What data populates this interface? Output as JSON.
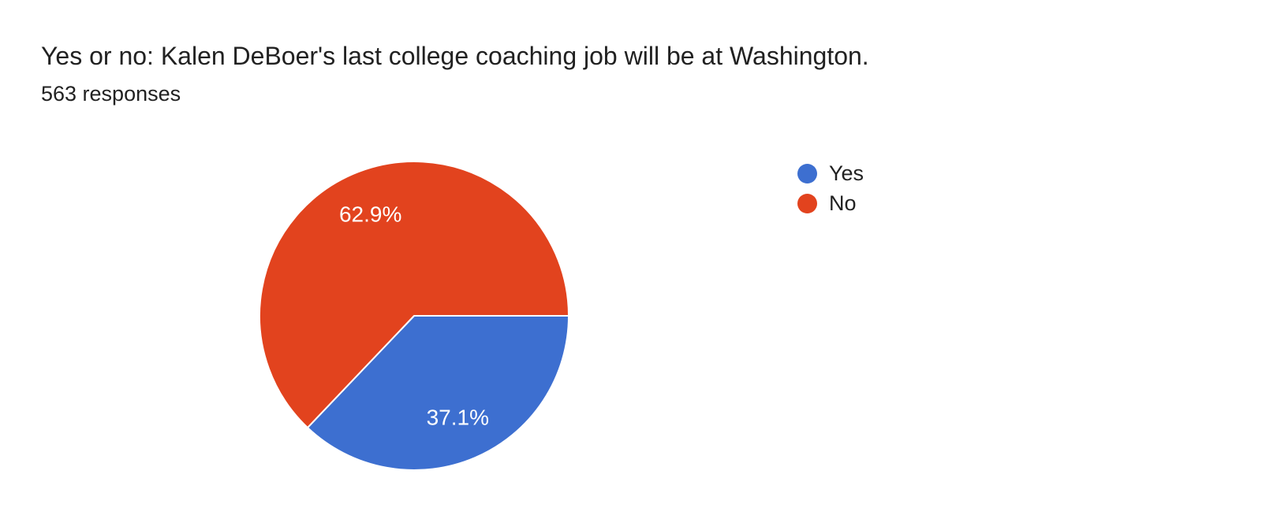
{
  "header": {
    "title": "Yes or no: Kalen DeBoer's last college coaching job will be at Washington.",
    "response_count": "563 responses"
  },
  "chart_data": {
    "type": "pie",
    "title": "Yes or no: Kalen DeBoer's last college coaching job will be at Washington.",
    "subtitle": "563 responses",
    "slices": [
      {
        "label": "Yes",
        "value_percent": 37.1,
        "percent_label": "37.1%",
        "color": "#3D6FD0"
      },
      {
        "label": "No",
        "value_percent": 62.9,
        "percent_label": "62.9%",
        "color": "#E2431E"
      }
    ],
    "start_angle_deg": 0,
    "direction": "clockwise",
    "slice_border_color": "#ffffff",
    "slice_border_width": 2,
    "slice_label_color": "#ffffff",
    "legend_position": "right",
    "background": "#ffffff"
  },
  "legend": {
    "items": [
      {
        "label": "Yes",
        "color": "#3D6FD0"
      },
      {
        "label": "No",
        "color": "#E2431E"
      }
    ]
  }
}
